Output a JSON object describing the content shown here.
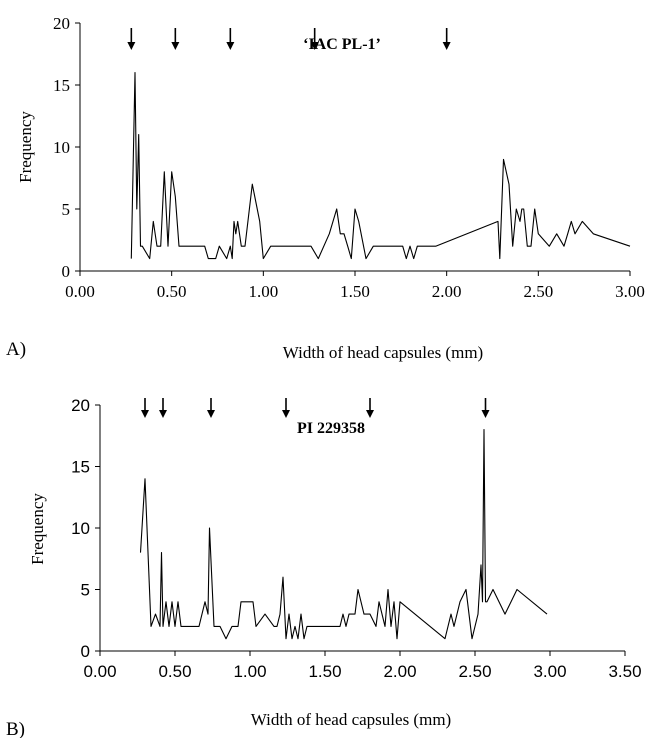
{
  "chart_data": [
    {
      "type": "line",
      "panel_label": "A)",
      "title": "‘IAC PL-1’",
      "xlabel": "Width of head capsules (mm)",
      "ylabel": "Frequency",
      "xlim": [
        0,
        3
      ],
      "ylim": [
        0,
        20
      ],
      "x_ticks": [
        "0.00",
        "0.50",
        "1.00",
        "1.50",
        "2.00",
        "2.50",
        "3.00"
      ],
      "y_ticks": [
        "0",
        "5",
        "10",
        "15",
        "20"
      ],
      "series": [
        {
          "x": [
            0.28,
            0.3,
            0.31,
            0.32,
            0.33,
            0.34,
            0.38,
            0.4,
            0.42,
            0.44,
            0.46,
            0.48,
            0.5,
            0.52,
            0.54,
            0.56,
            0.6,
            0.64,
            0.68,
            0.7,
            0.72,
            0.74,
            0.76,
            0.8,
            0.82,
            0.83,
            0.84,
            0.85,
            0.86,
            0.88,
            0.9,
            0.94,
            0.98,
            1.0,
            1.04,
            1.06,
            1.1,
            1.16,
            1.2,
            1.26,
            1.3,
            1.36,
            1.4,
            1.42,
            1.44,
            1.46,
            1.48,
            1.5,
            1.52,
            1.56,
            1.6,
            1.7,
            1.76,
            1.78,
            1.8,
            1.82,
            1.84,
            1.88,
            1.94,
            2.28,
            2.29,
            2.31,
            2.34,
            2.36,
            2.38,
            2.4,
            2.41,
            2.42,
            2.44,
            2.46,
            2.48,
            2.5,
            2.56,
            2.6,
            2.64,
            2.66,
            2.68,
            2.7,
            2.74,
            2.8,
            3.0
          ],
          "y": [
            1,
            16,
            5,
            11,
            2,
            2,
            1,
            4,
            2,
            2,
            8,
            2,
            8,
            6,
            2,
            2,
            2,
            2,
            2,
            1,
            1,
            1,
            2,
            1,
            2,
            1,
            4,
            3,
            4,
            2,
            2,
            7,
            4,
            1,
            2,
            2,
            2,
            2,
            2,
            2,
            1,
            3,
            5,
            3,
            3,
            2,
            1,
            5,
            4,
            1,
            2,
            2,
            2,
            1,
            2,
            1,
            2,
            2,
            2,
            4,
            1,
            9,
            7,
            2,
            5,
            4,
            5,
            5,
            2,
            2,
            5,
            3,
            2,
            3,
            2,
            3,
            4,
            3,
            4,
            3,
            2
          ]
        }
      ],
      "arrows_x": [
        0.28,
        0.52,
        0.82,
        1.28,
        2.0
      ]
    },
    {
      "type": "line",
      "panel_label": "B)",
      "title": "PI 229358",
      "xlabel": "Width of head capsules (mm)",
      "ylabel": "Frequency",
      "xlim": [
        0,
        3.5
      ],
      "ylim": [
        0,
        20
      ],
      "x_ticks": [
        "0.00",
        "0.50",
        "1.00",
        "1.50",
        "2.00",
        "2.50",
        "3.00",
        "3.50"
      ],
      "y_ticks": [
        "0",
        "5",
        "10",
        "15",
        "20"
      ],
      "series": [
        {
          "x": [
            0.27,
            0.3,
            0.34,
            0.37,
            0.4,
            0.41,
            0.42,
            0.44,
            0.46,
            0.48,
            0.5,
            0.52,
            0.54,
            0.56,
            0.6,
            0.66,
            0.7,
            0.72,
            0.73,
            0.76,
            0.8,
            0.84,
            0.88,
            0.92,
            0.94,
            0.98,
            1.02,
            1.04,
            1.1,
            1.16,
            1.18,
            1.2,
            1.22,
            1.24,
            1.26,
            1.28,
            1.3,
            1.32,
            1.34,
            1.36,
            1.38,
            1.4,
            1.44,
            1.5,
            1.56,
            1.6,
            1.62,
            1.64,
            1.66,
            1.7,
            1.72,
            1.76,
            1.8,
            1.84,
            1.86,
            1.9,
            1.92,
            1.94,
            1.96,
            1.98,
            2.0,
            2.3,
            2.34,
            2.36,
            2.4,
            2.44,
            2.48,
            2.52,
            2.54,
            2.55,
            2.56,
            2.57,
            2.58,
            2.62,
            2.7,
            2.78,
            2.98
          ],
          "y": [
            8,
            14,
            2,
            3,
            2,
            8,
            2,
            4,
            2,
            4,
            2,
            4,
            2,
            2,
            2,
            2,
            4,
            3,
            10,
            2,
            2,
            1,
            2,
            2,
            4,
            4,
            4,
            2,
            3,
            2,
            2,
            3,
            6,
            1,
            3,
            1,
            2,
            1,
            3,
            1,
            2,
            2,
            2,
            2,
            2,
            2,
            3,
            2,
            3,
            3,
            5,
            3,
            3,
            2,
            4,
            2,
            5,
            2,
            4,
            1,
            4,
            1,
            3,
            2,
            4,
            5,
            1,
            3,
            7,
            4,
            18,
            4,
            4,
            5,
            3,
            5,
            3
          ]
        }
      ],
      "arrows_x": [
        0.3,
        0.42,
        0.74,
        1.24,
        1.8,
        2.57
      ]
    }
  ]
}
